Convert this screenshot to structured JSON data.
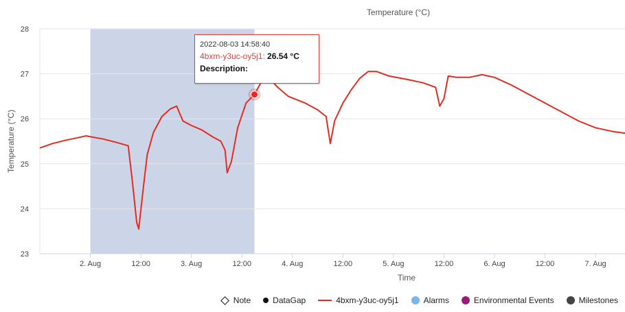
{
  "chart_data": {
    "type": "line",
    "title": "Temperature (°C)",
    "xlabel": "Time",
    "ylabel": "Temperature (°C)",
    "ylim": [
      23,
      28
    ],
    "yticks": [
      23,
      24,
      25,
      26,
      27,
      28
    ],
    "xlim": [
      "2022-08-01 12:00",
      "2022-08-07 07:00"
    ],
    "xticks": [
      {
        "t": "2022-08-02 00:00",
        "label": "2. Aug"
      },
      {
        "t": "2022-08-02 12:00",
        "label": "12:00"
      },
      {
        "t": "2022-08-03 00:00",
        "label": "3. Aug"
      },
      {
        "t": "2022-08-03 12:00",
        "label": "12:00"
      },
      {
        "t": "2022-08-04 00:00",
        "label": "4. Aug"
      },
      {
        "t": "2022-08-04 12:00",
        "label": "12:00"
      },
      {
        "t": "2022-08-05 00:00",
        "label": "5. Aug"
      },
      {
        "t": "2022-08-05 12:00",
        "label": "12:00"
      },
      {
        "t": "2022-08-06 00:00",
        "label": "6. Aug"
      },
      {
        "t": "2022-08-06 12:00",
        "label": "12:00"
      },
      {
        "t": "2022-08-07 00:00",
        "label": "7. Aug"
      }
    ],
    "grid": true,
    "legend_position": "bottom-right",
    "selection_range": [
      "2022-08-02 00:00",
      "2022-08-03 14:58:40"
    ],
    "selection_color": "#c9d2e7",
    "series": [
      {
        "name": "4bxm-y3uc-oy5j1",
        "color": "#e52b20",
        "points": [
          [
            "2022-08-01 12:00",
            25.35
          ],
          [
            "2022-08-01 15:00",
            25.45
          ],
          [
            "2022-08-01 18:00",
            25.52
          ],
          [
            "2022-08-01 21:00",
            25.58
          ],
          [
            "2022-08-01 23:00",
            25.62
          ],
          [
            "2022-08-02 00:00",
            25.6
          ],
          [
            "2022-08-02 03:00",
            25.55
          ],
          [
            "2022-08-02 06:00",
            25.48
          ],
          [
            "2022-08-02 09:00",
            25.4
          ],
          [
            "2022-08-02 10:00",
            24.6
          ],
          [
            "2022-08-02 11:00",
            23.7
          ],
          [
            "2022-08-02 11:30",
            23.55
          ],
          [
            "2022-08-02 12:30",
            24.4
          ],
          [
            "2022-08-02 13:30",
            25.2
          ],
          [
            "2022-08-02 15:00",
            25.7
          ],
          [
            "2022-08-02 17:00",
            26.05
          ],
          [
            "2022-08-02 19:00",
            26.22
          ],
          [
            "2022-08-02 20:30",
            26.28
          ],
          [
            "2022-08-02 22:00",
            25.95
          ],
          [
            "2022-08-03 00:00",
            25.85
          ],
          [
            "2022-08-03 02:30",
            25.75
          ],
          [
            "2022-08-03 05:00",
            25.6
          ],
          [
            "2022-08-03 07:00",
            25.5
          ],
          [
            "2022-08-03 08:00",
            25.3
          ],
          [
            "2022-08-03 08:30",
            24.8
          ],
          [
            "2022-08-03 09:30",
            25.05
          ],
          [
            "2022-08-03 11:00",
            25.8
          ],
          [
            "2022-08-03 13:00",
            26.35
          ],
          [
            "2022-08-03 14:58",
            26.54
          ],
          [
            "2022-08-03 16:30",
            26.8
          ],
          [
            "2022-08-03 18:30",
            26.9
          ],
          [
            "2022-08-03 20:30",
            26.7
          ],
          [
            "2022-08-03 23:00",
            26.5
          ],
          [
            "2022-08-04 03:00",
            26.35
          ],
          [
            "2022-08-04 06:00",
            26.2
          ],
          [
            "2022-08-04 08:00",
            26.05
          ],
          [
            "2022-08-04 09:00",
            25.45
          ],
          [
            "2022-08-04 10:00",
            25.95
          ],
          [
            "2022-08-04 12:00",
            26.35
          ],
          [
            "2022-08-04 14:00",
            26.65
          ],
          [
            "2022-08-04 16:00",
            26.9
          ],
          [
            "2022-08-04 18:00",
            27.05
          ],
          [
            "2022-08-04 20:00",
            27.05
          ],
          [
            "2022-08-04 23:00",
            26.95
          ],
          [
            "2022-08-05 03:00",
            26.88
          ],
          [
            "2022-08-05 07:00",
            26.8
          ],
          [
            "2022-08-05 10:00",
            26.7
          ],
          [
            "2022-08-05 11:00",
            26.28
          ],
          [
            "2022-08-05 12:00",
            26.45
          ],
          [
            "2022-08-05 13:00",
            26.95
          ],
          [
            "2022-08-05 15:00",
            26.92
          ],
          [
            "2022-08-05 18:00",
            26.92
          ],
          [
            "2022-08-05 21:00",
            26.98
          ],
          [
            "2022-08-06 00:00",
            26.92
          ],
          [
            "2022-08-06 04:00",
            26.75
          ],
          [
            "2022-08-06 08:00",
            26.55
          ],
          [
            "2022-08-06 12:00",
            26.35
          ],
          [
            "2022-08-06 16:00",
            26.15
          ],
          [
            "2022-08-06 20:00",
            25.95
          ],
          [
            "2022-08-07 00:00",
            25.8
          ],
          [
            "2022-08-07 04:00",
            25.72
          ],
          [
            "2022-08-07 07:00",
            25.68
          ]
        ]
      }
    ],
    "highlight_point": [
      "2022-08-03 14:58",
      26.54
    ]
  },
  "tooltip": {
    "time": "2022-08-03 14:58:40",
    "series": "4bxm-y3uc-oy5j1",
    "separator": ": ",
    "value": "26.54 °C",
    "description": "Description:"
  },
  "legend": {
    "items": [
      {
        "label": "Note",
        "icon": "diamond-outline",
        "color": "#111111"
      },
      {
        "label": "DataGap",
        "icon": "dot",
        "color": "#111111"
      },
      {
        "label": "4bxm-y3uc-oy5j1",
        "icon": "line-dot",
        "color": "#e52b20"
      },
      {
        "label": "Alarms",
        "icon": "circle",
        "color": "#7cb5ec"
      },
      {
        "label": "Environmental Events",
        "icon": "circle",
        "color": "#9b1b7a"
      },
      {
        "label": "Milestones",
        "icon": "circle",
        "color": "#444444"
      }
    ]
  }
}
